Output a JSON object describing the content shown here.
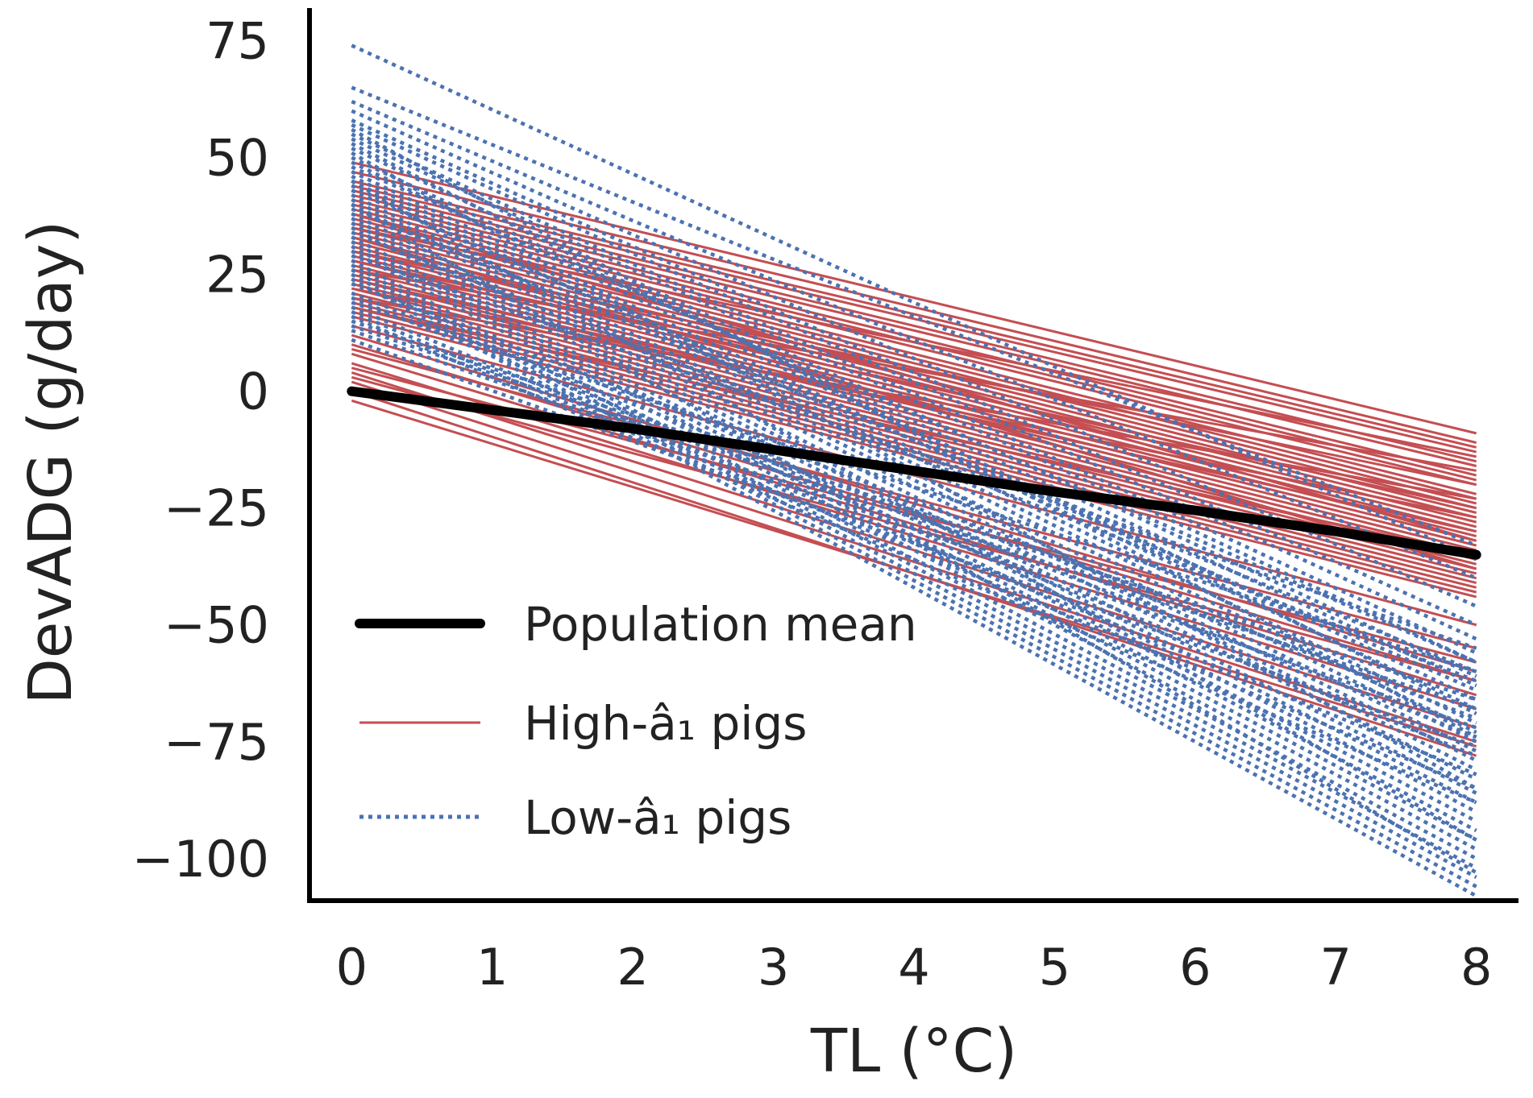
{
  "chart_data": {
    "type": "line",
    "title": "",
    "xlabel": "TL (°C)",
    "ylabel": "DevADG (g/day)",
    "xlim": [
      -0.3,
      8.3
    ],
    "ylim": [
      -109,
      82
    ],
    "x_ticks": [
      0,
      1,
      2,
      3,
      4,
      5,
      6,
      7,
      8
    ],
    "x_tick_labels": [
      "0",
      "1",
      "2",
      "3",
      "4",
      "5",
      "6",
      "7",
      "8"
    ],
    "y_ticks": [
      75,
      50,
      25,
      0,
      -25,
      -50,
      -75,
      -100
    ],
    "y_tick_labels": [
      "75",
      "50",
      "25",
      "0",
      "−25",
      "−50",
      "−75",
      "−100"
    ],
    "grid": false,
    "legend_position": "lower-left",
    "colors": {
      "population_mean": "#000000",
      "high_a1": "#c44e52",
      "low_a1": "#4c72b0"
    },
    "series": [
      {
        "name": "Population mean",
        "style": "solid-thick",
        "x": [
          0,
          1,
          2,
          3,
          4,
          5,
          6,
          7,
          8
        ],
        "y": [
          0,
          -4,
          -8,
          -12.5,
          -17,
          -21.5,
          -25.5,
          -30,
          -35
        ]
      },
      {
        "name": "High-â₁ pigs",
        "style": "solid",
        "lines": [
          [
            49,
            -9
          ],
          [
            47,
            -11
          ],
          [
            45,
            -12
          ],
          [
            44,
            -13
          ],
          [
            43,
            -15
          ],
          [
            42,
            -16
          ],
          [
            41,
            -18
          ],
          [
            40,
            -19
          ],
          [
            39,
            -20
          ],
          [
            38,
            -22
          ],
          [
            37,
            -23
          ],
          [
            36,
            -24
          ],
          [
            35,
            -25
          ],
          [
            34,
            -26
          ],
          [
            33,
            -27
          ],
          [
            32,
            -28
          ],
          [
            31,
            -29
          ],
          [
            30,
            -30
          ],
          [
            29,
            -31
          ],
          [
            28,
            -32
          ],
          [
            27,
            -33
          ],
          [
            26,
            -34
          ],
          [
            25,
            -35
          ],
          [
            24,
            -36
          ],
          [
            23,
            -37
          ],
          [
            22,
            -38
          ],
          [
            21,
            -39
          ],
          [
            20,
            -40
          ],
          [
            19,
            -41
          ],
          [
            18,
            -42
          ],
          [
            17,
            -43
          ],
          [
            16,
            -44
          ],
          [
            30,
            -20
          ],
          [
            28,
            -25
          ],
          [
            26,
            -17
          ],
          [
            24,
            -30
          ],
          [
            35,
            -14
          ],
          [
            33,
            -38
          ],
          [
            22,
            -27
          ],
          [
            20,
            -23
          ],
          [
            18,
            -35
          ],
          [
            38,
            -32
          ],
          [
            12,
            -60
          ],
          [
            10,
            -62
          ],
          [
            8,
            -65
          ],
          [
            6,
            -68
          ],
          [
            4,
            -72
          ],
          [
            2,
            -75
          ],
          [
            0,
            -78
          ],
          [
            -2,
            -76
          ],
          [
            5,
            -58
          ],
          [
            9,
            -55
          ],
          [
            14,
            -50
          ],
          [
            3,
            -62
          ]
        ]
      },
      {
        "name": "Low-â₁ pigs",
        "style": "dotted",
        "lines": [
          [
            74,
            -36
          ],
          [
            65,
            -33
          ],
          [
            62,
            -40
          ],
          [
            60,
            -46
          ],
          [
            58,
            -50
          ],
          [
            57,
            -53
          ],
          [
            55,
            -56
          ],
          [
            54,
            -58
          ],
          [
            52,
            -61
          ],
          [
            50,
            -63
          ],
          [
            49,
            -66
          ],
          [
            47,
            -68
          ],
          [
            46,
            -71
          ],
          [
            45,
            -73
          ],
          [
            44,
            -75
          ],
          [
            42,
            -77
          ],
          [
            41,
            -79
          ],
          [
            40,
            -81
          ],
          [
            38,
            -83
          ],
          [
            37,
            -86
          ],
          [
            36,
            -88
          ],
          [
            35,
            -90
          ],
          [
            33,
            -92
          ],
          [
            32,
            -94
          ],
          [
            31,
            -96
          ],
          [
            30,
            -98
          ],
          [
            28,
            -100
          ],
          [
            27,
            -102
          ],
          [
            26,
            -104
          ],
          [
            25,
            -106
          ],
          [
            24,
            -108
          ],
          [
            23,
            -70
          ],
          [
            21,
            -74
          ],
          [
            20,
            -78
          ],
          [
            18,
            -82
          ],
          [
            17,
            -85
          ],
          [
            16,
            -88
          ],
          [
            15,
            -66
          ],
          [
            13,
            -72
          ],
          [
            11,
            -76
          ],
          [
            39,
            -60
          ],
          [
            43,
            -64
          ],
          [
            48,
            -58
          ],
          [
            53,
            -69
          ],
          [
            56,
            -74
          ],
          [
            51,
            -85
          ],
          [
            34,
            -62
          ],
          [
            29,
            -55
          ],
          [
            19,
            -60
          ],
          [
            14,
            -68
          ],
          [
            45,
            -96
          ],
          [
            40,
            -103
          ]
        ]
      }
    ]
  }
}
